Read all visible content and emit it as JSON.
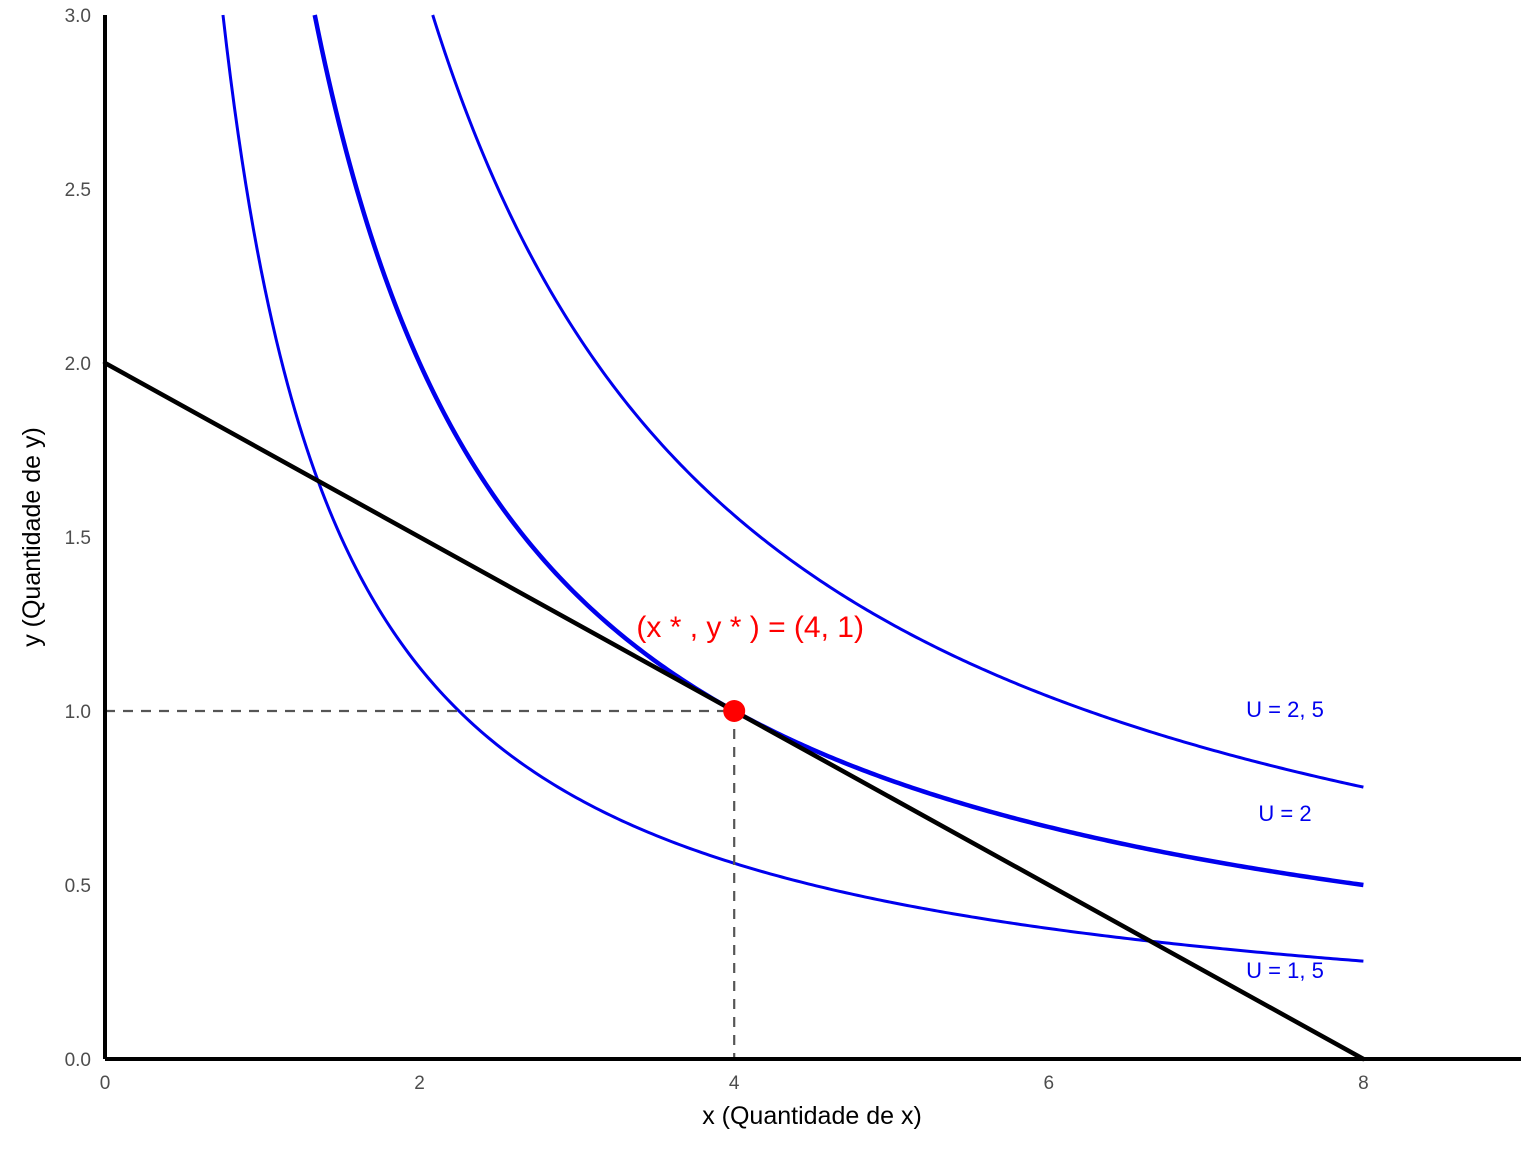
{
  "chart_data": {
    "type": "line",
    "title": "",
    "xlabel": "x (Quantidade de x)",
    "ylabel": "y (Quantidade de y)",
    "xlim": [
      0,
      9
    ],
    "ylim": [
      0,
      3
    ],
    "xticks": [
      "0",
      "2",
      "4",
      "6",
      "8"
    ],
    "yticks": [
      "0.0",
      "0.5",
      "1.0",
      "1.5",
      "2.0",
      "2.5",
      "3.0"
    ],
    "grid": false,
    "colors": {
      "indifference": "#0000ee",
      "budget": "#000000",
      "optimum": "#ff0000",
      "guide": "#555555"
    },
    "budget_line": {
      "x": [
        0,
        8
      ],
      "y": [
        2,
        0
      ]
    },
    "indifference_curves": [
      {
        "label": "U = 1, 5",
        "utility": 1.5
      },
      {
        "label": "U = 2",
        "utility": 2
      },
      {
        "label": "U = 2, 5",
        "utility": 2.5
      }
    ],
    "curve_x_max": 8,
    "optimum": {
      "x": 4,
      "y": 1,
      "label": "(x * , y * ) = (4, 1)"
    }
  }
}
